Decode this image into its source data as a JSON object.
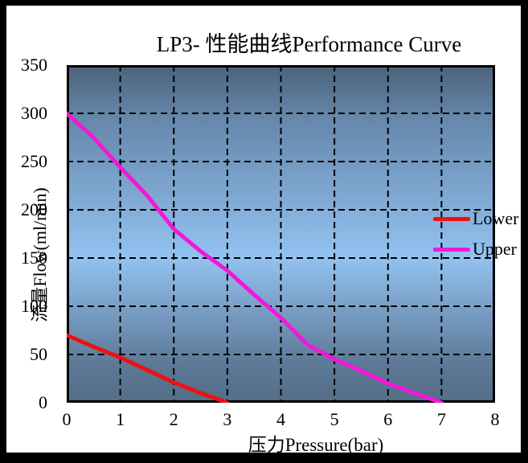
{
  "page": {
    "background_color": "#000000",
    "panel_color": "#ffffff"
  },
  "chart_data": {
    "type": "line",
    "title": "LP3- 性能曲线Performance Curve",
    "xlabel": "压力Pressure(bar)",
    "ylabel": "流量Flow(ml/min)",
    "xlim": [
      0,
      8
    ],
    "ylim": [
      0,
      350
    ],
    "xticks": [
      0,
      1,
      2,
      3,
      4,
      5,
      6,
      7,
      8
    ],
    "yticks": [
      0,
      50,
      100,
      150,
      200,
      250,
      300,
      350
    ],
    "grid": true,
    "gridline_color": "#000000",
    "gridline_style": "dashed",
    "legend_position": "inside-right",
    "plot_bg_gradient": [
      {
        "offset": 0.0,
        "color": "#4d6179"
      },
      {
        "offset": 0.15,
        "color": "#6486a9"
      },
      {
        "offset": 0.57,
        "color": "#93c2f1"
      },
      {
        "offset": 0.88,
        "color": "#5e7a98"
      },
      {
        "offset": 1.0,
        "color": "#546d87"
      }
    ],
    "series": [
      {
        "name": "Lower",
        "color": "#ee1111",
        "x": [
          0,
          0.5,
          1,
          1.5,
          2,
          2.5,
          3
        ],
        "y": [
          70,
          58,
          47,
          34,
          21,
          10,
          0
        ]
      },
      {
        "name": "Upper",
        "color": "#f318d8",
        "x": [
          0,
          0.5,
          1,
          1.5,
          2,
          2.5,
          3,
          3.5,
          4,
          4.5,
          5,
          5.5,
          6,
          6.5,
          7
        ],
        "y": [
          300,
          275,
          244,
          215,
          180,
          157,
          137,
          112,
          88,
          60,
          45,
          33,
          20,
          10,
          0
        ]
      }
    ]
  }
}
